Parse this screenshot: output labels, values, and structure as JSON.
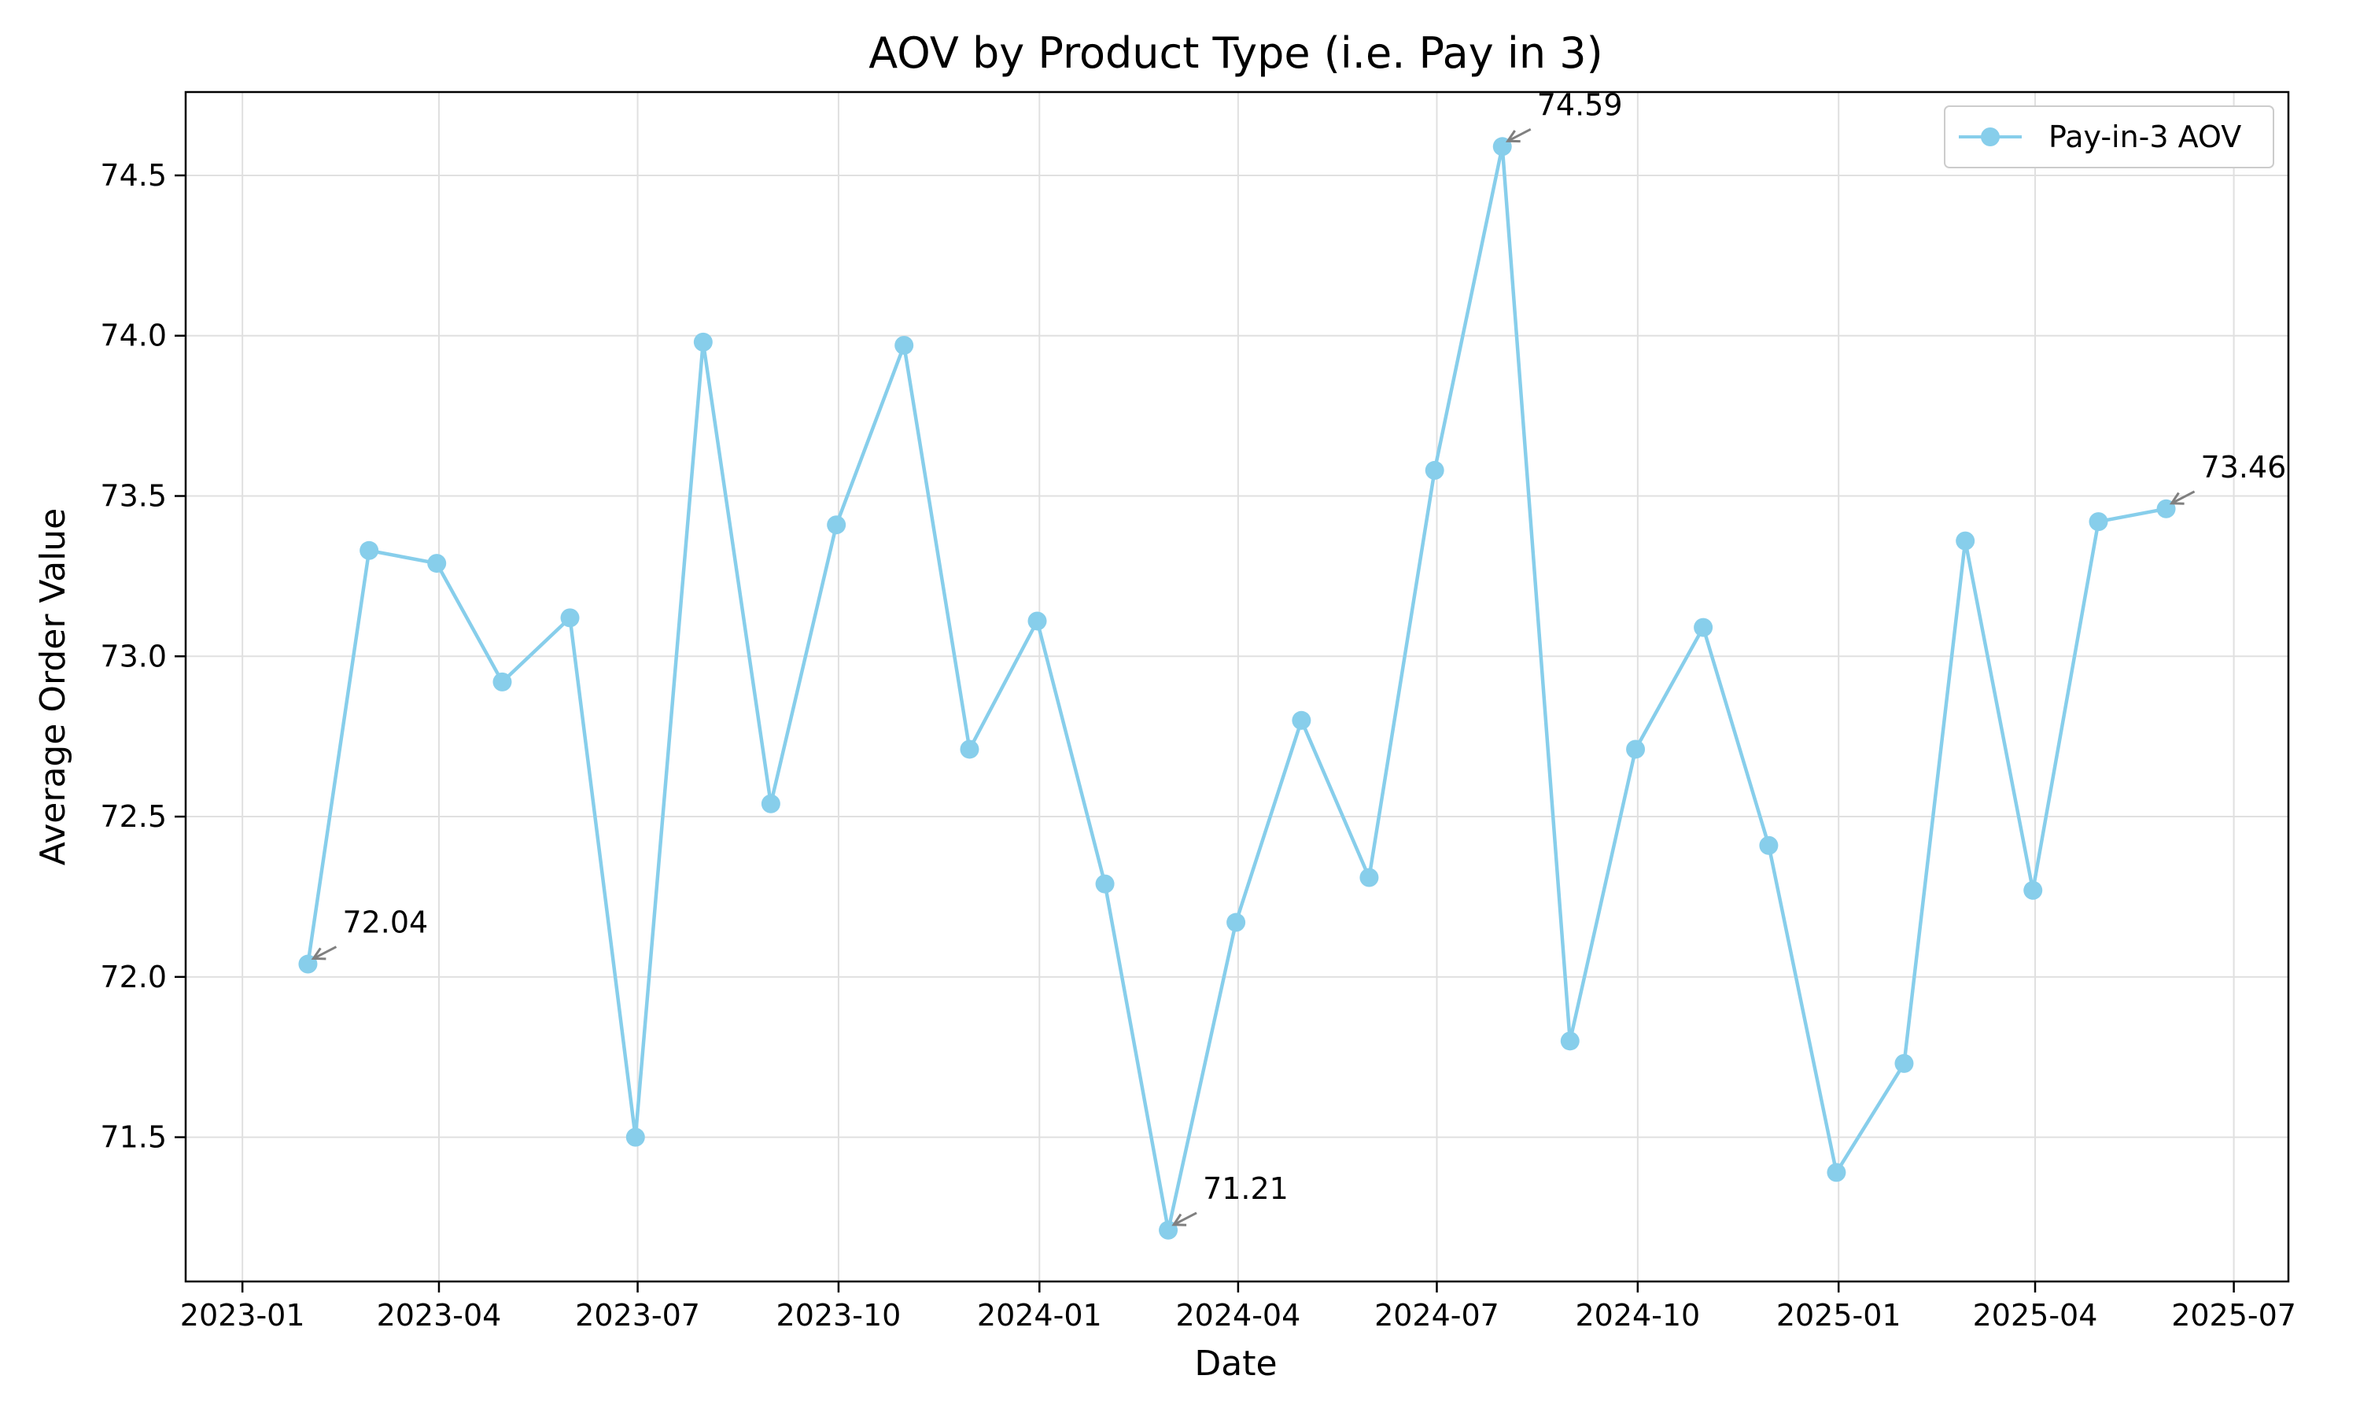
{
  "chart_data": {
    "type": "line",
    "title": "AOV by Product Type (i.e. Pay in 3)",
    "xlabel": "Date",
    "ylabel": "Average Order Value",
    "x_ticks": [
      "2023-01",
      "2023-04",
      "2023-07",
      "2023-10",
      "2024-01",
      "2024-04",
      "2024-07",
      "2024-10",
      "2025-01",
      "2025-04",
      "2025-07"
    ],
    "y_ticks": [
      "71.5",
      "72.0",
      "72.5",
      "73.0",
      "73.5",
      "74.0",
      "74.5"
    ],
    "xlim": [
      "2022-12-06",
      "2025-07-26"
    ],
    "ylim": [
      71.05,
      74.76
    ],
    "grid": true,
    "legend_position": "top-right",
    "series": [
      {
        "name": "Pay-in-3 AOV",
        "color": "#87CEEB",
        "marker": "circle",
        "x": [
          "2023-01-31",
          "2023-02-28",
          "2023-03-31",
          "2023-04-30",
          "2023-05-31",
          "2023-06-30",
          "2023-07-31",
          "2023-08-31",
          "2023-09-30",
          "2023-10-31",
          "2023-11-30",
          "2023-12-31",
          "2024-01-31",
          "2024-02-29",
          "2024-03-31",
          "2024-04-30",
          "2024-05-31",
          "2024-06-30",
          "2024-07-31",
          "2024-08-31",
          "2024-09-30",
          "2024-10-31",
          "2024-11-30",
          "2024-12-31",
          "2025-01-31",
          "2025-02-28",
          "2025-03-31",
          "2025-04-30",
          "2025-05-31"
        ],
        "y": [
          72.04,
          73.33,
          73.29,
          72.92,
          73.12,
          71.5,
          73.98,
          72.54,
          73.41,
          73.97,
          72.71,
          73.11,
          72.29,
          71.21,
          72.17,
          72.8,
          72.31,
          73.58,
          74.59,
          71.8,
          72.71,
          73.09,
          72.41,
          71.39,
          71.73,
          73.36,
          72.27,
          73.42,
          73.46
        ]
      }
    ],
    "annotations": [
      {
        "text": "72.04",
        "x": "2023-01-31",
        "y": 72.04
      },
      {
        "text": "71.21",
        "x": "2024-02-29",
        "y": 71.21
      },
      {
        "text": "74.59",
        "x": "2024-07-31",
        "y": 74.59
      },
      {
        "text": "73.46",
        "x": "2025-05-31",
        "y": 73.46
      }
    ]
  }
}
